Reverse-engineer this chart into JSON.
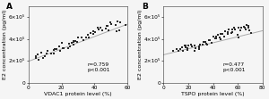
{
  "panel_A": {
    "label": "A",
    "xlabel": "VDAC1 protein level (%)",
    "ylabel": "E2 concentration (pg/ml)",
    "xlim": [
      0,
      60
    ],
    "ylim": [
      0,
      700000
    ],
    "yticks": [
      0,
      200000,
      400000,
      600000
    ],
    "ytick_labels": [
      "0",
      "2×10⁵",
      "4×10⁵",
      "6×10⁵"
    ],
    "xticks": [
      0,
      20,
      40,
      60
    ],
    "r_text": "r=0.759",
    "p_text": "p<0.001",
    "scatter_x": [
      4,
      5,
      6,
      7,
      8,
      9,
      10,
      11,
      12,
      13,
      14,
      15,
      16,
      17,
      18,
      19,
      20,
      21,
      22,
      23,
      24,
      25,
      26,
      27,
      28,
      29,
      30,
      31,
      32,
      33,
      34,
      35,
      36,
      37,
      38,
      39,
      40,
      41,
      42,
      43,
      44,
      45,
      46,
      47,
      48,
      49,
      50,
      51,
      52,
      53,
      54,
      55,
      56,
      57,
      58
    ],
    "scatter_y": [
      230000,
      245000,
      215000,
      255000,
      225000,
      270000,
      240000,
      265000,
      285000,
      295000,
      265000,
      275000,
      305000,
      315000,
      295000,
      335000,
      310000,
      355000,
      325000,
      305000,
      345000,
      335000,
      365000,
      355000,
      375000,
      385000,
      395000,
      375000,
      415000,
      405000,
      395000,
      425000,
      435000,
      415000,
      455000,
      445000,
      475000,
      465000,
      495000,
      485000,
      505000,
      475000,
      505000,
      525000,
      515000,
      485000,
      545000,
      525000,
      555000,
      475000,
      565000,
      555000,
      480000,
      510000,
      535000
    ],
    "line_x": [
      0,
      60
    ],
    "line_y": [
      195000,
      535000
    ],
    "dot_color": "#2a2a2a",
    "line_color": "#aaaaaa"
  },
  "panel_B": {
    "label": "B",
    "xlabel": "TSPO protein level (%)",
    "ylabel": "E2 concentration (pg/ml)",
    "xlim": [
      0,
      80
    ],
    "ylim": [
      0,
      700000
    ],
    "yticks": [
      0,
      200000,
      400000,
      600000
    ],
    "ytick_labels": [
      "0",
      "2×10⁵",
      "4×10⁵",
      "6×10⁵"
    ],
    "xticks": [
      0,
      20,
      40,
      60,
      80
    ],
    "r_text": "r=0.477",
    "p_text": "p<0.001",
    "scatter_x": [
      8,
      10,
      12,
      13,
      14,
      15,
      16,
      17,
      18,
      19,
      20,
      21,
      22,
      23,
      24,
      25,
      26,
      27,
      28,
      29,
      30,
      31,
      32,
      33,
      34,
      35,
      36,
      37,
      38,
      39,
      40,
      41,
      42,
      43,
      44,
      45,
      46,
      47,
      48,
      49,
      50,
      51,
      52,
      53,
      54,
      55,
      56,
      57,
      58,
      59,
      60,
      61,
      62,
      63,
      64,
      65,
      66,
      67,
      68,
      69,
      70,
      71
    ],
    "scatter_y": [
      305000,
      315000,
      285000,
      300000,
      325000,
      295000,
      335000,
      315000,
      325000,
      345000,
      305000,
      335000,
      355000,
      325000,
      345000,
      285000,
      315000,
      325000,
      305000,
      335000,
      355000,
      345000,
      365000,
      375000,
      385000,
      345000,
      355000,
      395000,
      375000,
      385000,
      415000,
      405000,
      395000,
      425000,
      435000,
      415000,
      405000,
      445000,
      455000,
      425000,
      475000,
      445000,
      465000,
      485000,
      495000,
      455000,
      475000,
      505000,
      485000,
      455000,
      415000,
      495000,
      475000,
      505000,
      515000,
      485000,
      505000,
      525000,
      515000,
      495000,
      475000,
      455000
    ],
    "line_x": [
      0,
      80
    ],
    "line_y": [
      255000,
      475000
    ],
    "dot_color": "#2a2a2a",
    "line_color": "#aaaaaa"
  },
  "background_color": "#f5f5f5",
  "font_size": 4.2,
  "label_font_size": 4.5,
  "annotation_font_size": 4.2,
  "panel_label_font_size": 6.5
}
